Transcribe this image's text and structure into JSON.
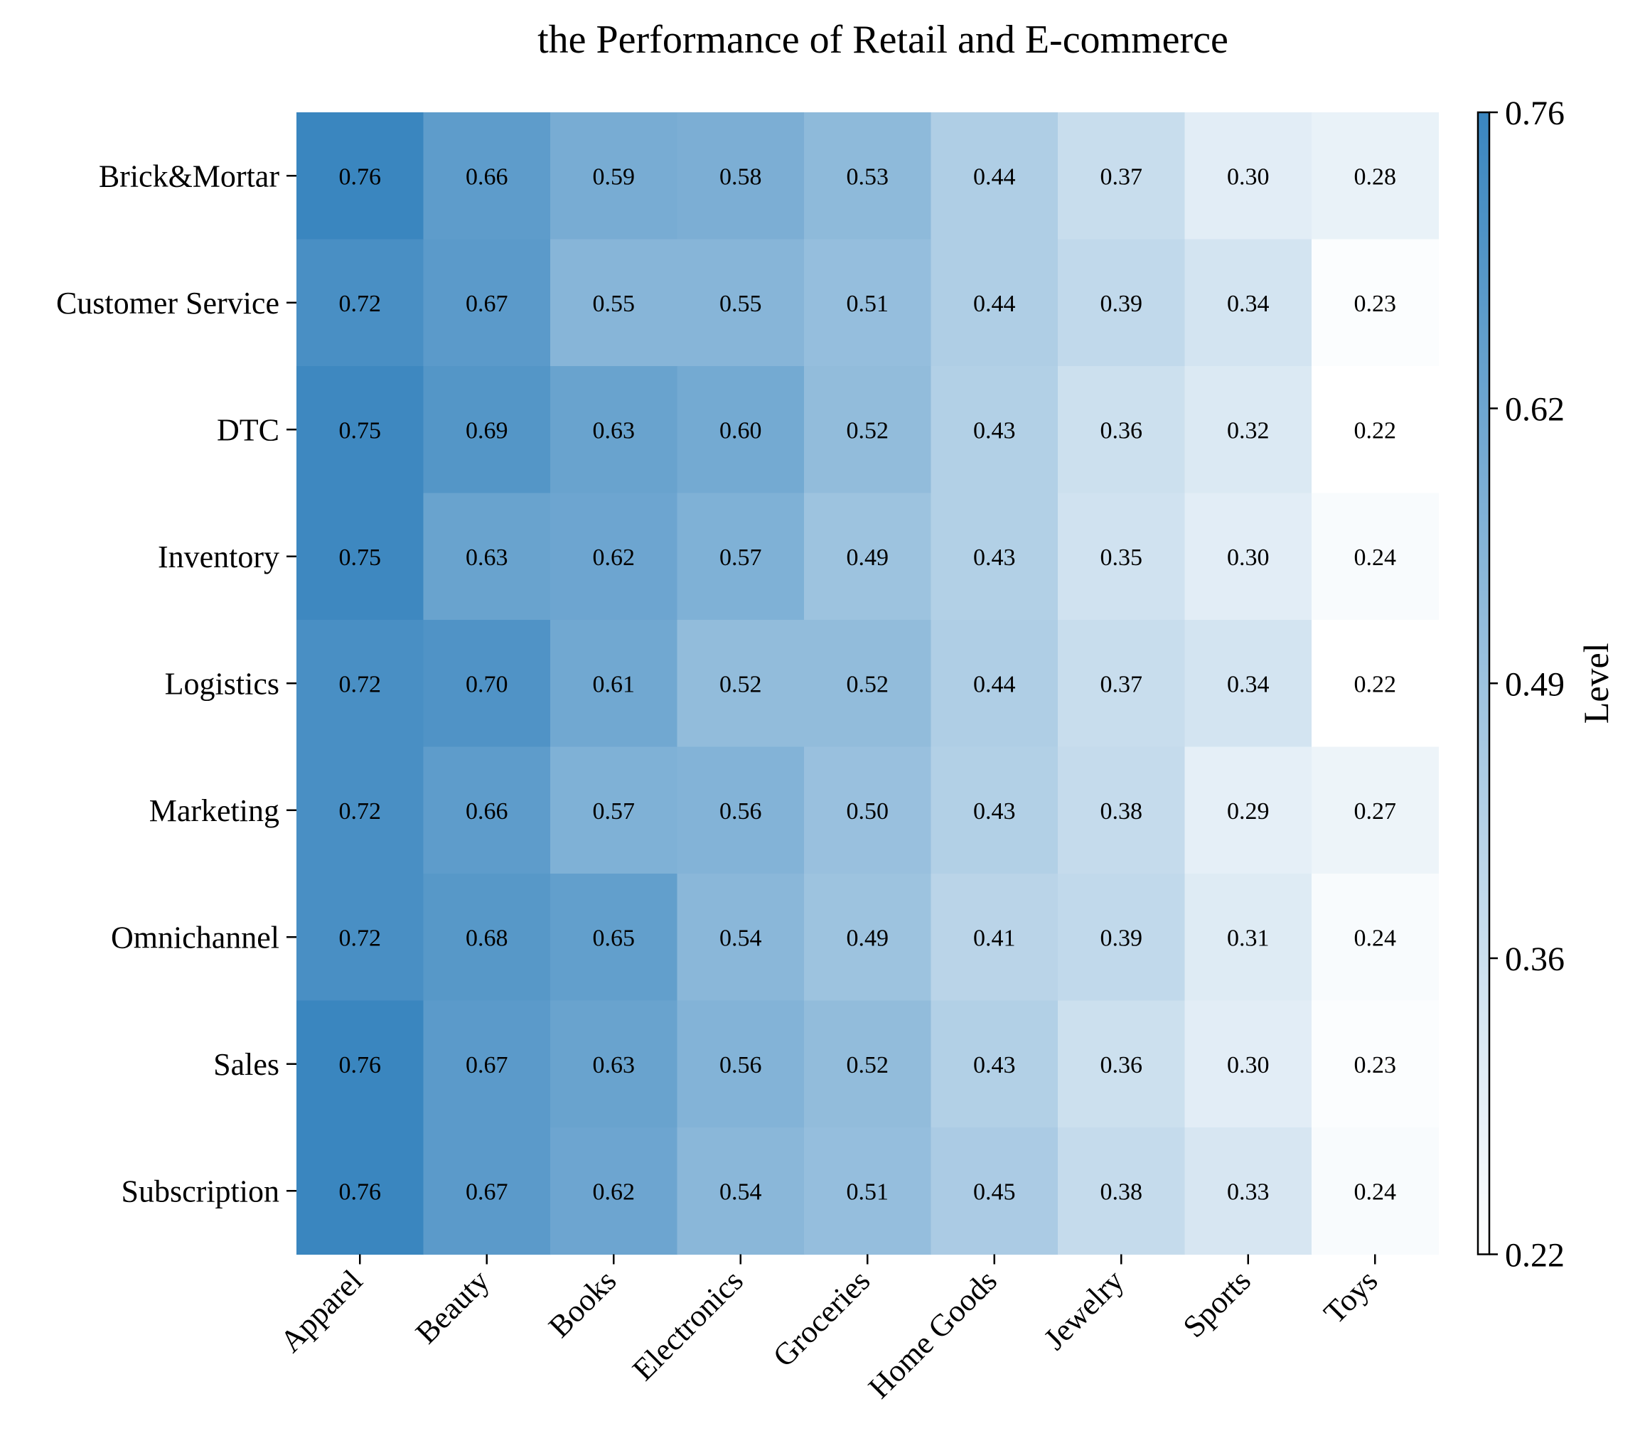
{
  "chart_data": {
    "type": "heatmap",
    "title": "the Performance of Retail and E-commerce",
    "x_categories": [
      "Apparel",
      "Beauty",
      "Books",
      "Electronics",
      "Groceries",
      "Home Goods",
      "Jewelry",
      "Sports",
      "Toys"
    ],
    "y_categories": [
      "Brick&Mortar",
      "Customer Service",
      "DTC",
      "Inventory",
      "Logistics",
      "Marketing",
      "Omnichannel",
      "Sales",
      "Subscription"
    ],
    "values": [
      [
        0.76,
        0.66,
        0.59,
        0.58,
        0.53,
        0.44,
        0.37,
        0.3,
        0.28
      ],
      [
        0.72,
        0.67,
        0.55,
        0.55,
        0.51,
        0.44,
        0.39,
        0.34,
        0.23
      ],
      [
        0.75,
        0.69,
        0.63,
        0.6,
        0.52,
        0.43,
        0.36,
        0.32,
        0.22
      ],
      [
        0.75,
        0.63,
        0.62,
        0.57,
        0.49,
        0.43,
        0.35,
        0.3,
        0.24
      ],
      [
        0.72,
        0.7,
        0.61,
        0.52,
        0.52,
        0.44,
        0.37,
        0.34,
        0.22
      ],
      [
        0.72,
        0.66,
        0.57,
        0.56,
        0.5,
        0.43,
        0.38,
        0.29,
        0.27
      ],
      [
        0.72,
        0.68,
        0.65,
        0.54,
        0.49,
        0.41,
        0.39,
        0.31,
        0.24
      ],
      [
        0.76,
        0.67,
        0.63,
        0.56,
        0.52,
        0.43,
        0.36,
        0.3,
        0.23
      ],
      [
        0.76,
        0.67,
        0.62,
        0.54,
        0.51,
        0.45,
        0.38,
        0.33,
        0.24
      ]
    ],
    "value_labels": [
      [
        "0.76",
        "0.66",
        "0.59",
        "0.58",
        "0.53",
        "0.44",
        "0.37",
        "0.30",
        "0.28"
      ],
      [
        "0.72",
        "0.67",
        "0.55",
        "0.55",
        "0.51",
        "0.44",
        "0.39",
        "0.34",
        "0.23"
      ],
      [
        "0.75",
        "0.69",
        "0.63",
        "0.60",
        "0.52",
        "0.43",
        "0.36",
        "0.32",
        "0.22"
      ],
      [
        "0.75",
        "0.63",
        "0.62",
        "0.57",
        "0.49",
        "0.43",
        "0.35",
        "0.30",
        "0.24"
      ],
      [
        "0.72",
        "0.70",
        "0.61",
        "0.52",
        "0.52",
        "0.44",
        "0.37",
        "0.34",
        "0.22"
      ],
      [
        "0.72",
        "0.66",
        "0.57",
        "0.56",
        "0.50",
        "0.43",
        "0.38",
        "0.29",
        "0.27"
      ],
      [
        "0.72",
        "0.68",
        "0.65",
        "0.54",
        "0.49",
        "0.41",
        "0.39",
        "0.31",
        "0.24"
      ],
      [
        "0.76",
        "0.67",
        "0.63",
        "0.56",
        "0.52",
        "0.43",
        "0.36",
        "0.30",
        "0.23"
      ],
      [
        "0.76",
        "0.67",
        "0.62",
        "0.54",
        "0.51",
        "0.45",
        "0.38",
        "0.33",
        "0.24"
      ]
    ],
    "colorbar": {
      "label": "Level",
      "range": [
        0.22,
        0.76
      ],
      "ticks": [
        "0.22",
        "0.36",
        "0.49",
        "0.62",
        "0.76"
      ],
      "color_low": "#ffffff",
      "color_high": "#3a86bf"
    },
    "grid": false
  }
}
